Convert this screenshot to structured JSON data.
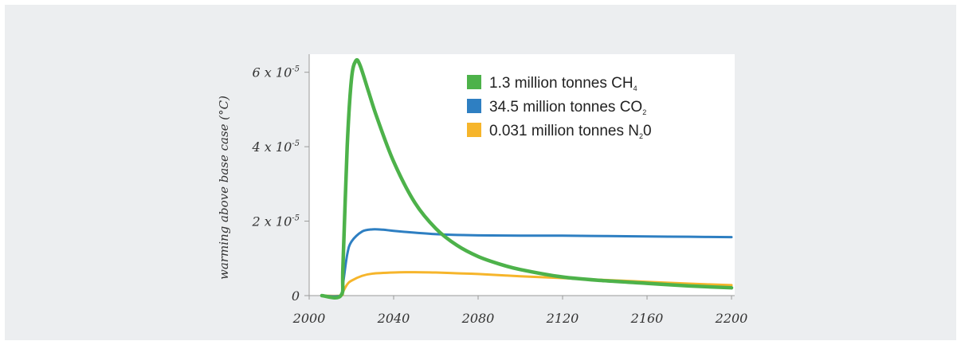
{
  "chart_data": {
    "type": "line",
    "title": "",
    "xlabel": "",
    "ylabel": "warming above base case (°C)",
    "xlim": [
      2000,
      2200
    ],
    "ylim": [
      0,
      6.4e-05
    ],
    "x_ticks": [
      {
        "value": 2000,
        "label": "2000"
      },
      {
        "value": 2040,
        "label": "2040"
      },
      {
        "value": 2080,
        "label": "2080"
      },
      {
        "value": 2120,
        "label": "2120"
      },
      {
        "value": 2160,
        "label": "2160"
      },
      {
        "value": 2200,
        "label": "2200"
      }
    ],
    "y_ticks": [
      {
        "value": 0,
        "label": "0"
      },
      {
        "value": 2e-05,
        "label": "2 x 10",
        "exp": "-5"
      },
      {
        "value": 4e-05,
        "label": "4 x 10",
        "exp": "-5"
      },
      {
        "value": 6e-05,
        "label": "6 x 10",
        "exp": "-5"
      }
    ],
    "legend_position": "top-right",
    "grid": false,
    "series": [
      {
        "name": "1.3 million tonnes CH",
        "subscript": "4",
        "color": "#4db24a",
        "x": [
          2006,
          2015,
          2016,
          2018,
          2020,
          2022,
          2024,
          2028,
          2032,
          2040,
          2050,
          2060,
          2070,
          2080,
          2090,
          2100,
          2120,
          2140,
          2160,
          2180,
          2200
        ],
        "y": [
          0,
          0,
          8e-06,
          4e-05,
          5.8e-05,
          6.3e-05,
          6.2e-05,
          5.5e-05,
          4.8e-05,
          3.6e-05,
          2.5e-05,
          1.8e-05,
          1.35e-05,
          1.05e-05,
          8.5e-06,
          7e-06,
          5e-06,
          4e-06,
          3.3e-06,
          2.6e-06,
          2.1e-06
        ]
      },
      {
        "name": "34.5 million tonnes CO",
        "subscript": "2",
        "color": "#2e7fc2",
        "x": [
          2006,
          2015,
          2016,
          2018,
          2020,
          2025,
          2030,
          2035,
          2040,
          2050,
          2060,
          2070,
          2080,
          2100,
          2120,
          2140,
          2160,
          2180,
          2200
        ],
        "y": [
          0,
          0,
          3e-06,
          1.1e-05,
          1.45e-05,
          1.72e-05,
          1.78e-05,
          1.77e-05,
          1.74e-05,
          1.69e-05,
          1.65e-05,
          1.63e-05,
          1.62e-05,
          1.61e-05,
          1.61e-05,
          1.6e-05,
          1.59e-05,
          1.58e-05,
          1.57e-05
        ]
      },
      {
        "name": "0.031 million tonnes N",
        "subscript": "2",
        "suffix": "0",
        "color": "#f6b52b",
        "x": [
          2006,
          2015,
          2016,
          2018,
          2020,
          2025,
          2030,
          2040,
          2050,
          2060,
          2070,
          2080,
          2100,
          2120,
          2140,
          2160,
          2180,
          2200
        ],
        "y": [
          0,
          0,
          1e-06,
          3e-06,
          4e-06,
          5.3e-06,
          5.9e-06,
          6.2e-06,
          6.3e-06,
          6.2e-06,
          6e-06,
          5.8e-06,
          5.2e-06,
          4.7e-06,
          4.2e-06,
          3.7e-06,
          3.2e-06,
          2.8e-06
        ]
      }
    ]
  }
}
